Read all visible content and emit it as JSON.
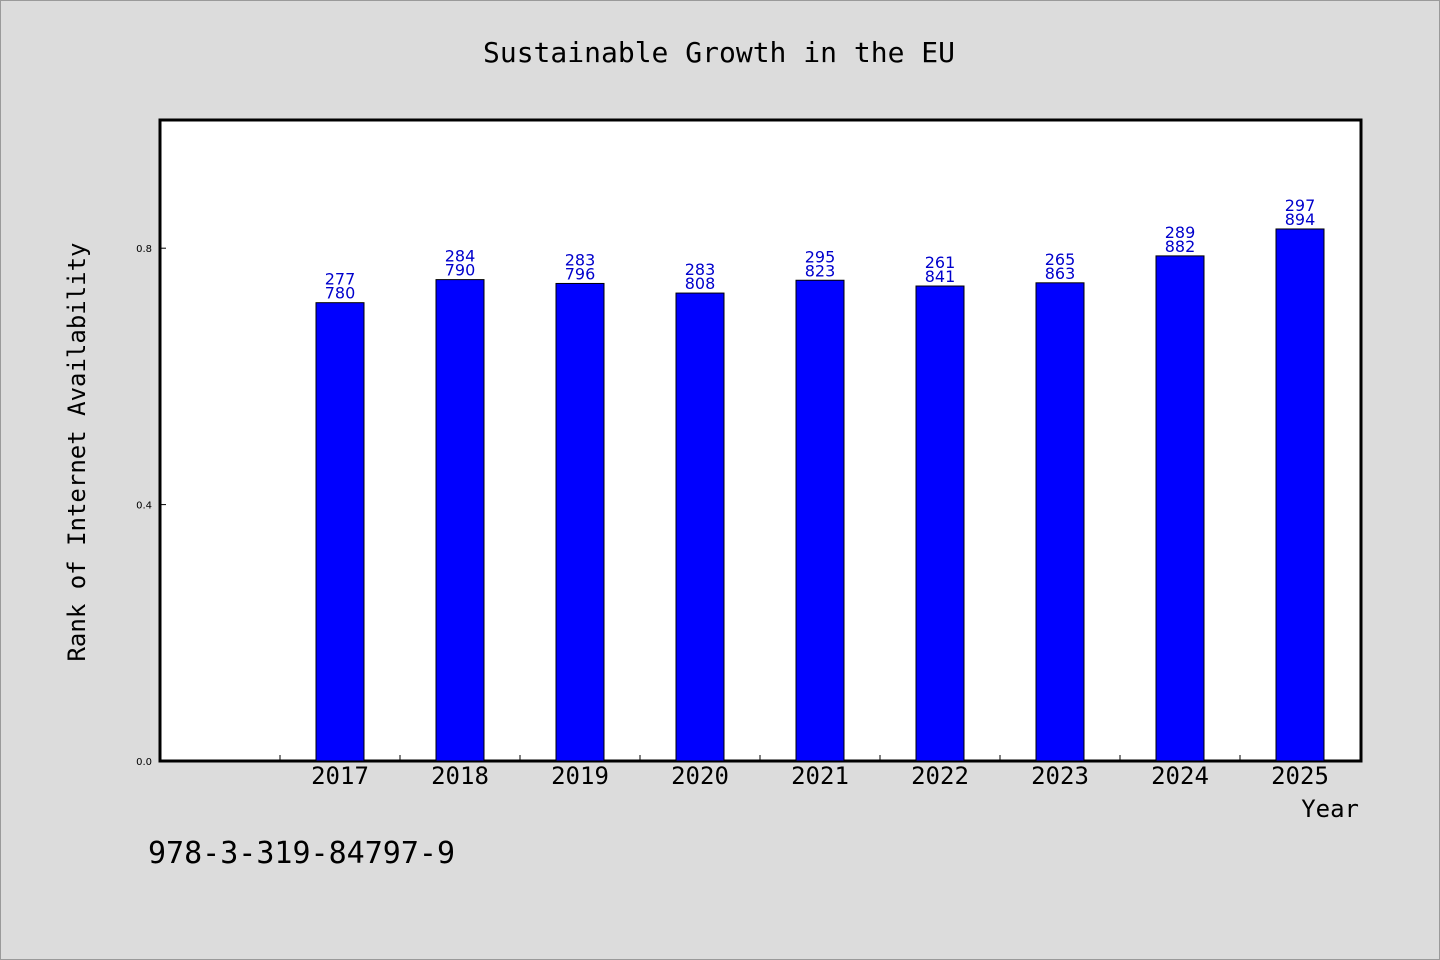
{
  "chart_data": {
    "type": "bar",
    "title": "Sustainable Growth in the EU",
    "xlabel": "Year",
    "ylabel": "Rank of Internet Availability",
    "categories": [
      "2017",
      "2018",
      "2019",
      "2020",
      "2021",
      "2022",
      "2023",
      "2024",
      "2025"
    ],
    "values": [
      0.715,
      0.751,
      0.745,
      0.73,
      0.75,
      0.741,
      0.746,
      0.788,
      0.83
    ],
    "data_labels": [
      [
        "277",
        "780"
      ],
      [
        "284",
        "790"
      ],
      [
        "283",
        "796"
      ],
      [
        "283",
        "808"
      ],
      [
        "295",
        "823"
      ],
      [
        "261",
        "841"
      ],
      [
        "265",
        "863"
      ],
      [
        "289",
        "882"
      ],
      [
        "297",
        "894"
      ]
    ],
    "yticks": [
      "0.0",
      "0.4",
      "0.8"
    ],
    "ytick_values": [
      0.0,
      0.4,
      0.8
    ],
    "ylim": [
      0.0,
      1.0
    ],
    "grid": false,
    "bar_color": "#0000ff",
    "label_color": "#0000cc"
  },
  "footer": {
    "isbn": "978-3-319-84797-9"
  },
  "colors": {
    "background": "#dcdcdc",
    "plot_background": "#ffffff"
  }
}
